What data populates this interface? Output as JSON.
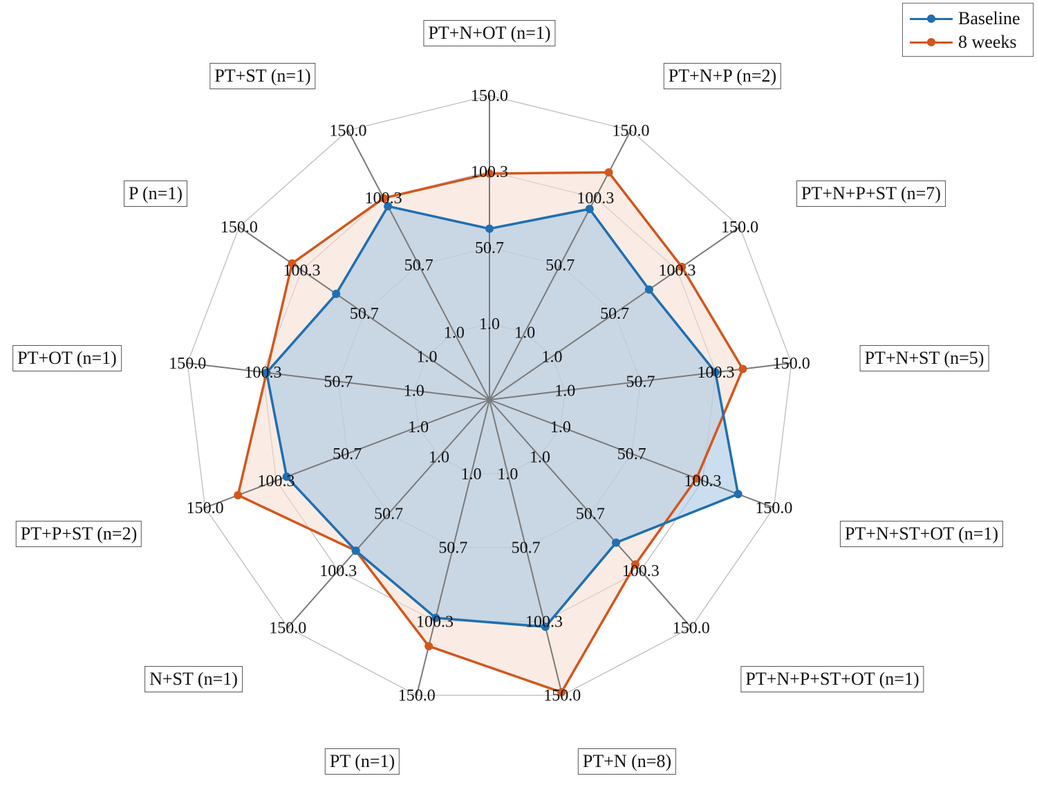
{
  "chart_data": {
    "type": "radar",
    "title": "",
    "categories": [
      "PT+N+OT (n=1)",
      "PT+N+P (n=2)",
      "PT+N+P+ST (n=7)",
      "PT+N+ST (n=5)",
      "PT+N+ST+OT (n=1)",
      "PT+N+P+ST+OT (n=1)",
      "PT+N (n=8)",
      "PT (n=1)",
      "N+ST (n=1)",
      "PT+P+ST (n=2)",
      "PT+OT (n=1)",
      "P (n=1)",
      "PT+ST (n=1)"
    ],
    "series": [
      {
        "name": "Baseline",
        "color": "#1f6fb2",
        "fill": "#a9c8e4",
        "values": [
          63,
          92,
          78,
          100,
          125,
          76,
          104,
          98,
          83,
          93,
          98,
          73,
          94
        ]
      },
      {
        "name": "8 weeks",
        "color": "#d4561c",
        "fill": "#f6dccd",
        "values": [
          99,
          119,
          104,
          118,
          96,
          95,
          148,
          117,
          83,
          127,
          98,
          108,
          100
        ]
      }
    ],
    "radial_ticks": [
      1.0,
      50.7,
      100.3,
      150.0
    ],
    "radial_tick_labels": [
      "1.0",
      "50.7",
      "100.3",
      "150.0"
    ],
    "rlim": [
      1.0,
      150.0
    ],
    "grid": true,
    "legend_position": "top-right"
  },
  "legend": {
    "items": [
      {
        "label": "Baseline",
        "color": "#1f6fb2"
      },
      {
        "label": "8 weeks",
        "color": "#d4561c"
      }
    ]
  }
}
